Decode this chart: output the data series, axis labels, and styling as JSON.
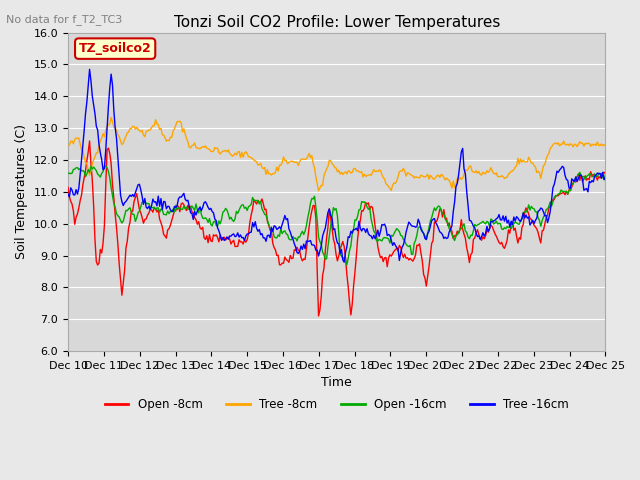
{
  "title": "Tonzi Soil CO2 Profile: Lower Temperatures",
  "subtitle": "No data for f_T2_TC3",
  "xlabel": "Time",
  "ylabel": "Soil Temperatures (C)",
  "legend_label": "TZ_soilco2",
  "ylim": [
    6.0,
    16.0
  ],
  "yticks": [
    6.0,
    7.0,
    8.0,
    9.0,
    10.0,
    11.0,
    12.0,
    13.0,
    14.0,
    15.0,
    16.0
  ],
  "xtick_labels": [
    "Dec 10",
    "Dec 11",
    "Dec 12",
    "Dec 13",
    "Dec 14",
    "Dec 15",
    "Dec 16",
    "Dec 17",
    "Dec 18",
    "Dec 19",
    "Dec 20",
    "Dec 21",
    "Dec 22",
    "Dec 23",
    "Dec 24",
    "Dec 25"
  ],
  "colors": {
    "open_8cm": "#ff0000",
    "tree_8cm": "#ffa500",
    "open_16cm": "#00aa00",
    "tree_16cm": "#0000ff"
  },
  "legend_entries": [
    "Open -8cm",
    "Tree -8cm",
    "Open -16cm",
    "Tree -16cm"
  ],
  "background_color": "#e8e8e8",
  "plot_bg_color": "#d8d8d8",
  "grid_color": "#ffffff"
}
